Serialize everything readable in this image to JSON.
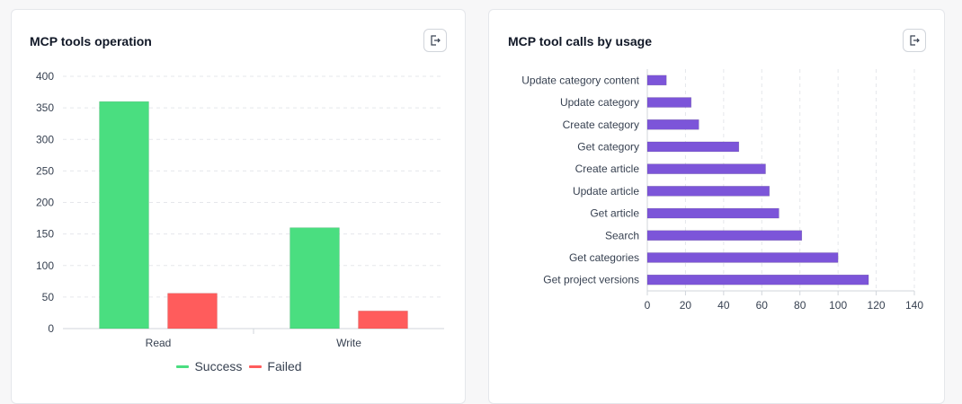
{
  "left_card": {
    "title": "MCP tools operation",
    "export_icon": "export-icon"
  },
  "right_card": {
    "title": "MCP tool calls by usage",
    "export_icon": "export-icon"
  },
  "chart_data": [
    {
      "type": "bar",
      "title": "MCP tools operation",
      "categories": [
        "Read",
        "Write"
      ],
      "series": [
        {
          "name": "Success",
          "values": [
            360,
            160
          ],
          "color": "#4ade80"
        },
        {
          "name": "Failed",
          "values": [
            56,
            28
          ],
          "color": "#ff5c5c"
        }
      ],
      "yticks": [
        "0",
        "50",
        "100",
        "150",
        "200",
        "250",
        "300",
        "350",
        "400"
      ],
      "ylim": [
        0,
        400
      ],
      "grid": true,
      "legend": "bottom-center"
    },
    {
      "type": "bar",
      "orientation": "horizontal",
      "title": "MCP tool calls by usage",
      "categories": [
        "Update category content",
        "Update category",
        "Create category",
        "Get category",
        "Create article",
        "Update article",
        "Get article",
        "Search",
        "Get categories",
        "Get project versions"
      ],
      "values": [
        10,
        23,
        27,
        48,
        62,
        64,
        69,
        81,
        100,
        116
      ],
      "color": "#7c55d9",
      "xticks": [
        "0",
        "20",
        "40",
        "60",
        "80",
        "100",
        "120",
        "140"
      ],
      "xlim": [
        0,
        140
      ],
      "grid": true,
      "legend": "none"
    }
  ]
}
